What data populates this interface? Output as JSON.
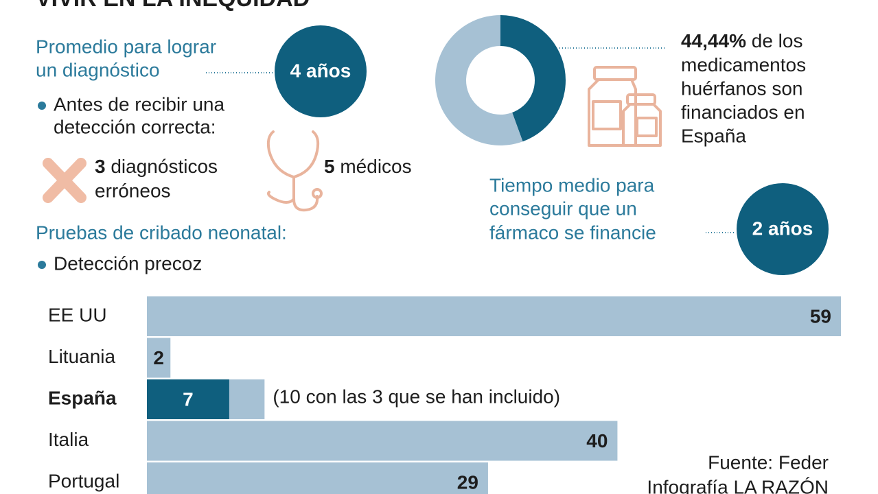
{
  "header": {
    "title": "VIVIR EN LA INEQUIDAD"
  },
  "diagnosis": {
    "heading": [
      "Promedio para lograr",
      "un diagnóstico"
    ],
    "average": "4 años",
    "bullet": [
      "Antes de recibir una",
      "detección correcta:"
    ],
    "errors": {
      "number": "3",
      "lines": [
        "diagnósticos",
        "erróneos"
      ]
    },
    "doctors": {
      "number": "5",
      "label": "médicos"
    }
  },
  "financing": {
    "heading": [
      "Tiempo medio para",
      "conseguir que un",
      "fármaco se financie"
    ],
    "average": "2 años"
  },
  "screening": {
    "heading": "Pruebas de cribado neonatal:",
    "bullet": "Detección precoz"
  },
  "source": [
    "Fuente: Feder",
    "Infografía LA RAZÓN"
  ],
  "chart_data": [
    {
      "type": "pie",
      "values": [
        44.44,
        55.56
      ],
      "value_labels": [
        "44,44%",
        null
      ],
      "colors": [
        "#0f5f7e",
        "#a6c1d4"
      ],
      "annotation": [
        "de los",
        "medicamentos",
        "huérfanos son",
        "financiados en",
        "España"
      ]
    },
    {
      "type": "bar",
      "orientation": "horizontal",
      "categories": [
        "EE UU",
        "Lituania",
        "España",
        "Italia",
        "Portugal"
      ],
      "highlight_index": 2,
      "xlim": [
        0,
        59
      ],
      "series": [
        {
          "values": [
            59,
            2,
            7,
            40,
            29
          ],
          "colors": [
            "#a6c1d4",
            "#a6c1d4",
            "#0f5f7e",
            "#a6c1d4",
            "#a6c1d4"
          ]
        },
        {
          "values": [
            null,
            null,
            3,
            null,
            null
          ],
          "color": "#a6c1d4"
        }
      ],
      "annotations": [
        null,
        null,
        "(10 con las 3 que se han incluido)",
        null,
        null
      ]
    }
  ]
}
